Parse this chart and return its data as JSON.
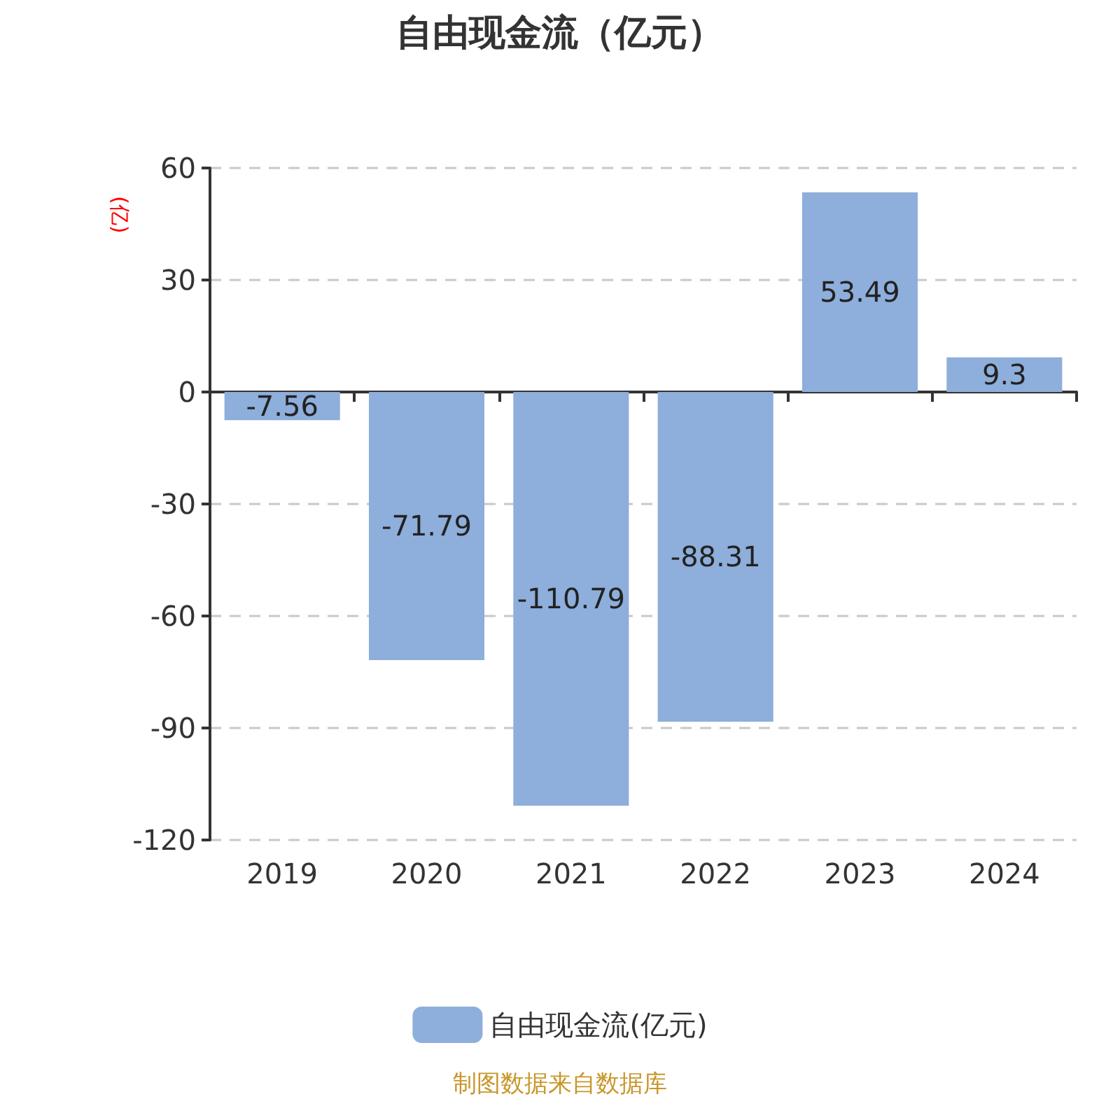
{
  "chart_data": {
    "type": "bar",
    "title": "自由现金流（亿元）",
    "ylabel": "(亿)",
    "categories": [
      "2019",
      "2020",
      "2021",
      "2022",
      "2023",
      "2024"
    ],
    "series": [
      {
        "name": "自由现金流(亿元)",
        "color": "#8eaedb",
        "values": [
          -7.56,
          -71.79,
          -110.79,
          -88.31,
          53.49,
          9.3
        ]
      }
    ],
    "ylim": [
      -120,
      60
    ],
    "yticks": [
      -120,
      -90,
      -60,
      -30,
      0,
      30,
      60
    ],
    "grid": "y",
    "legend": "bottom",
    "data_labels": true,
    "annotations": [
      "制图数据来自数据库"
    ]
  }
}
